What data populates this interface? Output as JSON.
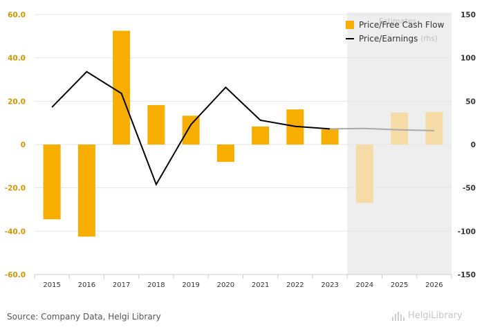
{
  "chart_data": {
    "type": "bar",
    "categories": [
      "2015",
      "2016",
      "2017",
      "2018",
      "2019",
      "2020",
      "2021",
      "2022",
      "2023",
      "2024",
      "2025",
      "2026"
    ],
    "series": [
      {
        "name": "Price/Free Cash Flow",
        "type": "bar",
        "axis": "left",
        "values": [
          -34.5,
          -42.5,
          52.5,
          18.2,
          13.3,
          -8.0,
          8.3,
          16.2,
          7.0,
          -27.0,
          14.7,
          15.0
        ]
      },
      {
        "name": "Price/Earnings",
        "type": "line",
        "axis": "right",
        "rhs_label": "(rhs)",
        "values": [
          43,
          84,
          59,
          -46,
          23,
          66,
          28,
          21,
          18,
          18.5,
          17,
          16
        ]
      }
    ],
    "estimate_start_index": 9,
    "estimates_label": "Estimates",
    "left_axis": {
      "ylim": [
        -60,
        60
      ],
      "ticks": [
        "-60.0",
        "-40.0",
        "-20.0",
        "0",
        "20.0",
        "40.0",
        "60.0"
      ]
    },
    "right_axis": {
      "ylim": [
        -150,
        150
      ],
      "ticks": [
        "-150",
        "-100",
        "-50",
        "0",
        "50",
        "100",
        "150"
      ]
    },
    "grid": true,
    "legend_position": "top-right",
    "colors": {
      "bar": "#f7ae00",
      "bar_estimate": "#f5dca6",
      "line": "#000000",
      "line_estimate": "#aaaaaa",
      "estimate_bg": "#eeeeee",
      "left_tick": "#d49700",
      "right_tick": "#333333"
    }
  },
  "footer": {
    "source": "Source: Company Data, Helgi Library",
    "logo": "HelgiLibrary"
  }
}
